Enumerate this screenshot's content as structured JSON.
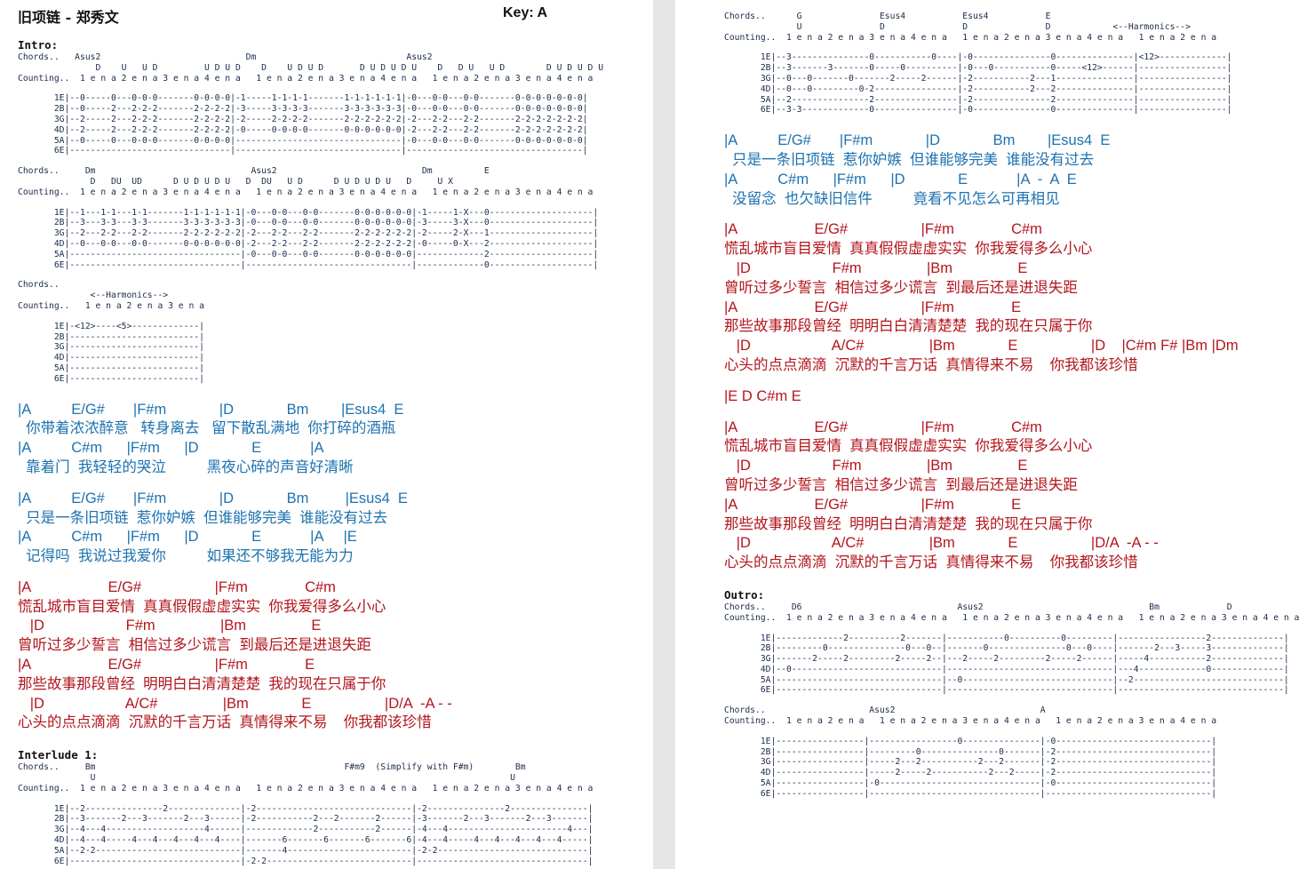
{
  "title": "旧项链 - 郑秀文",
  "key": "Key: A",
  "pages": [
    {
      "blocks": [
        {
          "kind": "heading",
          "text": "Intro:"
        },
        {
          "kind": "mono",
          "lines": [
            "Chords..   Asus2                            Dm                             Asus2",
            "               D    U   U D         U D U D    D    U D U D       D U D U D U    D   D U   U D        D U D U D U",
            "Counting..  1 e n a 2 e n a 3 e n a 4 e n a   1 e n a 2 e n a 3 e n a 4 e n a   1 e n a 2 e n a 3 e n a 4 e n a"
          ]
        },
        {
          "kind": "mono",
          "lines": [
            "       1E|--0-----0---0-0-0-------0-0-0-0|-1-----1-1-1-1-------1-1-1-1-1-1|-0---0-0---0-0-------0-0-0-0-0-0-0|",
            "       2B|--0-----2---2-2-2-------2-2-2-2|-3-----3-3-3-3-------3-3-3-3-3-3|-0---0-0---0-0-------0-0-0-0-0-0-0|",
            "       3G|--2-----2---2-2-2-------2-2-2-2|-2-----2-2-2-2-------2-2-2-2-2-2|-2---2-2---2-2-------2-2-2-2-2-2-2|",
            "       4D|--2-----2---2-2-2-------2-2-2-2|-0-----0-0-0-0-------0-0-0-0-0-0|-2---2-2---2-2-------2-2-2-2-2-2-2|",
            "       5A|--0-----0---0-0-0-------0-0-0-0|--------------------------------|-0---0-0---0-0-------0-0-0-0-0-0-0|",
            "       6E|-------------------------------|--------------------------------|----------------------------------|"
          ]
        },
        {
          "kind": "mono",
          "lines": [
            "Chords..     Dm                              Asus2                            Dm          E",
            "              D   DU  UD      D U D U D U   D  DU   U D      D U D U D U   D     U X",
            "Counting..  1 e n a 2 e n a 3 e n a 4 e n a   1 e n a 2 e n a 3 e n a 4 e n a   1 e n a 2 e n a 3 e n a 4 e n a"
          ]
        },
        {
          "kind": "mono",
          "lines": [
            "       1E|--1---1-1---1-1-------1-1-1-1-1-1|-0---0-0---0-0-------0-0-0-0-0-0|-1-----1-X---0--------------------|",
            "       2B|--3---3-3---3-3-------3-3-3-3-3-3|-0---0-0---0-0-------0-0-0-0-0-0|-3-----3-X---0--------------------|",
            "       3G|--2---2-2---2-2-------2-2-2-2-2-2|-2---2-2---2-2-------2-2-2-2-2-2|-2-----2-X---1--------------------|",
            "       4D|--0---0-0---0-0-------0-0-0-0-0-0|-2---2-2---2-2-------2-2-2-2-2-2|-0-----0-X---2--------------------|",
            "       5A|---------------------------------|-0---0-0---0-0-------0-0-0-0-0-0|-------------2--------------------|",
            "       6E|---------------------------------|--------------------------------|-------------0--------------------|"
          ]
        },
        {
          "kind": "mono",
          "lines": [
            "Chords..",
            "              <--Harmonics-->",
            "Counting..   1 e n a 2 e n a 3 e n a"
          ]
        },
        {
          "kind": "mono",
          "lines": [
            "       1E|-<12>----<5>-------------|",
            "       2B|-------------------------|",
            "       3G|-------------------------|",
            "       4D|-------------------------|",
            "       5A|-------------------------|",
            "       6E|-------------------------|"
          ]
        },
        {
          "kind": "verse",
          "color": "#1d72b0",
          "pairs": [
            {
              "chords": "|A          E/G#       |F#m             |D             Bm        |Esus4  E",
              "lyric": "  你带着浓浓醉意   转身离去   留下散乱满地  你打碎的酒瓶"
            },
            {
              "chords": "|A          C#m      |F#m      |D             E            |A",
              "lyric": "  靠着门  我轻轻的哭泣          黑夜心碎的声音好清晰"
            }
          ]
        },
        {
          "kind": "verse",
          "color": "#1d72b0",
          "pairs": [
            {
              "chords": "|A          E/G#       |F#m             |D             Bm         |Esus4  E",
              "lyric": "  只是一条旧项链  惹你妒嫉  但谁能够完美  谁能没有过去"
            },
            {
              "chords": "|A          C#m      |F#m      |D             E            |A     |E",
              "lyric": "  记得吗  我说过我爱你          如果还不够我无能为力"
            }
          ]
        },
        {
          "kind": "verse",
          "color": "#b3151d",
          "pairs": [
            {
              "chords": "|A                   E/G#                  |F#m              C#m",
              "lyric": "慌乱城市盲目爱情  真真假假虚虚实实  你我爱得多么小心"
            },
            {
              "chords": "   |D                    F#m                |Bm                E",
              "lyric": "曾听过多少誓言  相信过多少谎言  到最后还是进退失距"
            },
            {
              "chords": "|A                   E/G#                  |F#m              E",
              "lyric": "那些故事那段曾经  明明白白清清楚楚  我的现在只属于你"
            },
            {
              "chords": "   |D                    A/C#                |Bm             E                  |D/A  -A - -",
              "lyric": "心头的点点滴滴  沉默的千言万话  真情得来不易    你我都该珍惜"
            }
          ]
        },
        {
          "kind": "heading",
          "text": "Interlude 1:"
        },
        {
          "kind": "mono",
          "lines": [
            "Chords..     Bm                                                F#m9  (Simplify with F#m)        Bm",
            "              U                                                                                U",
            "Counting..  1 e n a 2 e n a 3 e n a 4 e n a   1 e n a 2 e n a 3 e n a 4 e n a   1 e n a 2 e n a 3 e n a 4 e n a"
          ]
        },
        {
          "kind": "mono",
          "lines": [
            "       1E|--2---------------2--------------|-2------------------------------|-2---------------2---------------|",
            "       2B|--3-------2---3-------2---3------|-2-----------2---2-------2------|-3-------2---3-------2---3-------|",
            "       3G|--4---4-------------------4------|-------------2-----------2------|-4---4-----------------------4---|",
            "       4D|--4---4-----4---4---4---4---4----|-------6-------6-------6-------6|-4---4-----4---4---4---4---4-----|",
            "       5A|--2-2----------------------------|-------4------------------------|-2-2-----------------------------|",
            "       6E|---------------------------------|-2-2----------------------------|---------------------------------|"
          ]
        }
      ]
    },
    {
      "blocks": [
        {
          "kind": "mono",
          "lines": [
            "Chords..      G               Esus4           Esus4           E",
            "              U               D               D               D            <--Harmonics-->",
            "Counting..  1 e n a 2 e n a 3 e n a 4 e n a   1 e n a 2 e n a 3 e n a 4 e n a   1 e n a 2 e n a"
          ]
        },
        {
          "kind": "mono",
          "lines": [
            "       1E|--3---------------0-----------0----|-0---------------0---------------|<12>-------------|",
            "       2B|--3-------3-------0-----0----------|-0---0-----------0-----<12>------|-----------------|",
            "       3G|--0---0-------0-------2-----2------|-2-----------2---1---------------|-----------------|",
            "       4D|--0---0---------0-2----------------|-2-----------2---2---------------|-----------------|",
            "       5A|--2---------------2----------------|-2---------------2---------------|-----------------|",
            "       6E|--3-3-------------0----------------|-0---------------0---------------|-----------------|"
          ]
        },
        {
          "kind": "verse",
          "color": "#1d72b0",
          "pairs": [
            {
              "chords": "|A          E/G#       |F#m             |D             Bm        |Esus4  E",
              "lyric": "  只是一条旧项链  惹你妒嫉  但谁能够完美  谁能没有过去"
            },
            {
              "chords": "|A          C#m      |F#m      |D             E            |A  -  A  E",
              "lyric": "  没留念  也欠缺旧信件          竟看不见怎么可再相见"
            }
          ]
        },
        {
          "kind": "verse",
          "color": "#b3151d",
          "pairs": [
            {
              "chords": "|A                   E/G#                  |F#m              C#m",
              "lyric": "慌乱城市盲目爱情  真真假假虚虚实实  你我爱得多么小心"
            },
            {
              "chords": "   |D                    F#m                |Bm                E",
              "lyric": "曾听过多少誓言  相信过多少谎言  到最后还是进退失距"
            },
            {
              "chords": "|A                   E/G#                  |F#m              E",
              "lyric": "那些故事那段曾经  明明白白清清楚楚  我的现在只属于你"
            },
            {
              "chords": "   |D                    A/C#                |Bm             E                  |D    |C#m F# |Bm |Dm",
              "lyric": "心头的点点滴滴  沉默的千言万话  真情得来不易    你我都该珍惜"
            }
          ]
        },
        {
          "kind": "verse",
          "color": "#b3151d",
          "pairs": [
            {
              "chords": "|E D C#m E"
            }
          ]
        },
        {
          "kind": "verse",
          "color": "#b3151d",
          "pairs": [
            {
              "chords": "|A                   E/G#                  |F#m              C#m",
              "lyric": "慌乱城市盲目爱情  真真假假虚虚实实  你我爱得多么小心"
            },
            {
              "chords": "   |D                    F#m                |Bm                E",
              "lyric": "曾听过多少誓言  相信过多少谎言  到最后还是进退失距"
            },
            {
              "chords": "|A                   E/G#                  |F#m              E",
              "lyric": "那些故事那段曾经  明明白白清清楚楚  我的现在只属于你"
            },
            {
              "chords": "   |D                    A/C#                |Bm             E                  |D/A  -A - -",
              "lyric": "心头的点点滴滴  沉默的千言万话  真情得来不易    你我都该珍惜"
            }
          ]
        },
        {
          "kind": "heading",
          "text": "Outro:"
        },
        {
          "kind": "mono",
          "lines": [
            "Chords..     D6                              Asus2                                Bm             D",
            "",
            "Counting..  1 e n a 2 e n a 3 e n a 4 e n a   1 e n a 2 e n a 3 e n a 4 e n a   1 e n a 2 e n a 3 e n a 4 e n a"
          ]
        },
        {
          "kind": "mono",
          "lines": [
            "       1E|-------------2----------2-------|-----------0----------0---------|-----------------2--------------|",
            "       2B|---------0---------------0---0--|-------0---------------0---0----|-------2---3-----3--------------|",
            "       3G|-------2-----2---------2-----2--|---2-----2---------2-----2------|-----4-----------2--------------|",
            "       4D|--0-----------------------------|--------------------------------|---4-------------0--------------|",
            "       5A|--------------------------------|--0-----------------------------|--2-----------------------------|",
            "       6E|--------------------------------|--------------------------------|--------------------------------|"
          ]
        },
        {
          "kind": "mono",
          "lines": [
            "Chords..                    Asus2                            A",
            "",
            "Counting..  1 e n a 2 e n a   1 e n a 2 e n a 3 e n a 4 e n a   1 e n a 2 e n a 3 e n a 4 e n a"
          ]
        },
        {
          "kind": "mono",
          "lines": [
            "       1E|-----------------|-----------------0---------------|-0------------------------------|",
            "       2B|-----------------|---------0---------------0-------|-2------------------------------|",
            "       3G|-----------------|-----2---2-----------2---2-------|-2------------------------------|",
            "       4D|-----------------|-----2-----2-----------2---2-----|-2------------------------------|",
            "       5A|-----------------|-0-------------------------------|-0------------------------------|",
            "       6E|-----------------|---------------------------------|--------------------------------|"
          ]
        }
      ]
    }
  ]
}
